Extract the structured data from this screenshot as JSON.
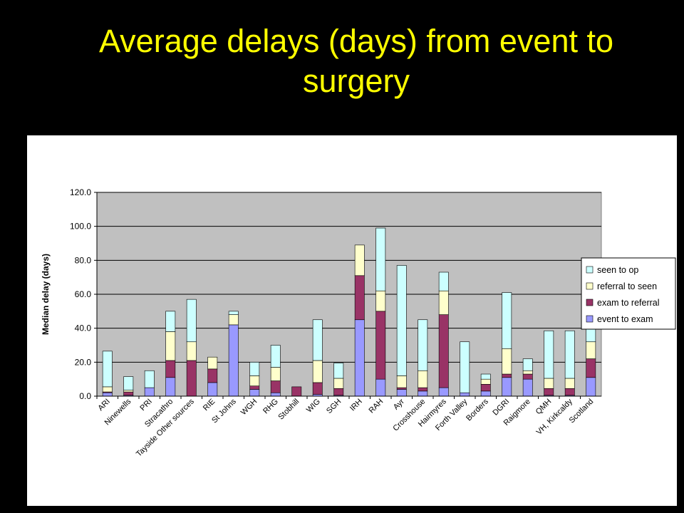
{
  "title_line1": "Average delays (days) from event to",
  "title_line2": "surgery",
  "colors": {
    "background": "#000000",
    "title": "#ffff00",
    "panel": "#ffffff",
    "plot_area": "#c0c0c0",
    "event_to_exam": "#9999ff",
    "exam_to_referral": "#993366",
    "referral_to_seen": "#ffffcc",
    "seen_to_op": "#ccffff"
  },
  "chart_data": {
    "type": "bar",
    "stacked": true,
    "ylabel": "Median delay (days)",
    "ylim": [
      0,
      120
    ],
    "yticks": [
      "0.0",
      "20.0",
      "40.0",
      "60.0",
      "80.0",
      "100.0",
      "120.0"
    ],
    "grid": true,
    "legend_position": "right",
    "categories": [
      "ARI",
      "Ninewells",
      "PRI",
      "Stracathro",
      "Tayside Other sources",
      "RIE",
      "St Johns",
      "WGH",
      "RHG",
      "Stobhill",
      "WIG",
      "SGH",
      "IRH",
      "RAH",
      "Ayr",
      "Crosshouse",
      "Hairmyres",
      "Forth Valley",
      "Borders",
      "DGRI",
      "Raigmore",
      "QMH",
      "VH, Kirkcaldy",
      "Scotland"
    ],
    "series": [
      {
        "name": "event to exam",
        "color": "#9999ff",
        "values": [
          2,
          0.5,
          5,
          11,
          0,
          8,
          42,
          4,
          2,
          0,
          1,
          0.5,
          45,
          10,
          4,
          3,
          5,
          2,
          3,
          11,
          10,
          0.5,
          0.5,
          11
        ]
      },
      {
        "name": "exam to referral",
        "color": "#993366",
        "values": [
          0.5,
          2,
          0,
          10,
          21,
          8,
          0,
          2,
          7,
          5.5,
          7,
          4,
          26,
          40,
          1,
          2,
          43,
          0,
          4,
          2,
          3,
          4,
          4,
          11
        ]
      },
      {
        "name": "referral to seen",
        "color": "#ffffcc",
        "values": [
          3,
          1,
          0,
          17,
          11,
          7,
          6,
          6,
          8,
          0,
          13,
          6,
          18,
          12,
          7,
          10,
          14,
          0,
          3,
          15,
          2,
          6,
          6,
          10
        ]
      },
      {
        "name": "seen to op",
        "color": "#ccffff",
        "values": [
          21,
          8,
          10,
          12,
          25,
          0,
          2,
          8,
          13,
          0,
          24,
          9,
          0,
          37,
          65,
          30,
          11,
          30,
          3,
          33,
          7,
          28,
          28,
          24
        ]
      }
    ]
  }
}
